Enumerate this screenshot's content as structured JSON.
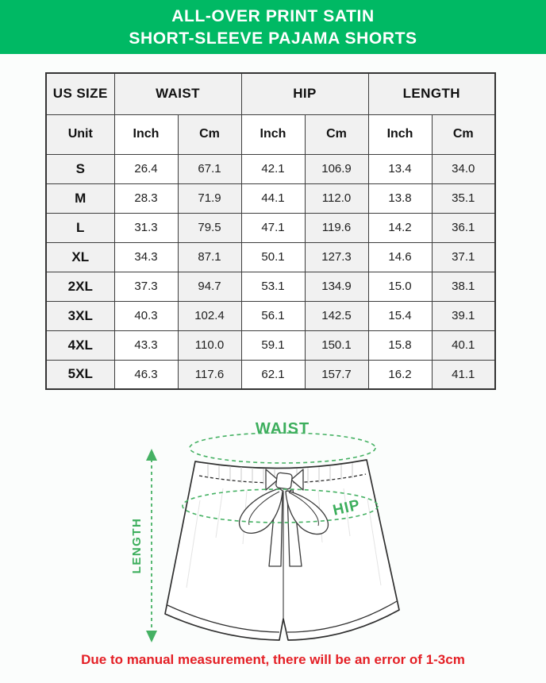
{
  "banner": {
    "title_line1": "ALL-OVER PRINT SATIN",
    "title_line2": "SHORT-SLEEVE PAJAMA SHORTS"
  },
  "size_table": {
    "corner_label": "US SIZE",
    "unit_label": "Unit",
    "column_groups": [
      {
        "label": "WAIST",
        "units": [
          "Inch",
          "Cm"
        ]
      },
      {
        "label": "HIP",
        "units": [
          "Inch",
          "Cm"
        ]
      },
      {
        "label": "LENGTH",
        "units": [
          "Inch",
          "Cm"
        ]
      }
    ],
    "rows": [
      {
        "size": "S",
        "values": [
          "26.4",
          "67.1",
          "42.1",
          "106.9",
          "13.4",
          "34.0"
        ]
      },
      {
        "size": "M",
        "values": [
          "28.3",
          "71.9",
          "44.1",
          "112.0",
          "13.8",
          "35.1"
        ]
      },
      {
        "size": "L",
        "values": [
          "31.3",
          "79.5",
          "47.1",
          "119.6",
          "14.2",
          "36.1"
        ]
      },
      {
        "size": "XL",
        "values": [
          "34.3",
          "87.1",
          "50.1",
          "127.3",
          "14.6",
          "37.1"
        ]
      },
      {
        "size": "2XL",
        "values": [
          "37.3",
          "94.7",
          "53.1",
          "134.9",
          "15.0",
          "38.1"
        ]
      },
      {
        "size": "3XL",
        "values": [
          "40.3",
          "102.4",
          "56.1",
          "142.5",
          "15.4",
          "39.1"
        ]
      },
      {
        "size": "4XL",
        "values": [
          "43.3",
          "110.0",
          "59.1",
          "150.1",
          "15.8",
          "40.1"
        ]
      },
      {
        "size": "5XL",
        "values": [
          "46.3",
          "117.6",
          "62.1",
          "157.7",
          "16.2",
          "41.1"
        ]
      }
    ]
  },
  "diagram": {
    "waist_label": "WAIST",
    "hip_label": "HIP",
    "length_label": "LENGTH"
  },
  "footer": {
    "note": "Due to manual measurement, there will be an error of 1-3cm"
  },
  "colors": {
    "banner_green": "#00b964",
    "diagram_label_green": "#3cae5c",
    "diagram_dash_green": "#45b163",
    "note_red": "#e42026",
    "shaded_cell_gray": "#f1f1f1",
    "table_border": "#3d3d3d"
  }
}
